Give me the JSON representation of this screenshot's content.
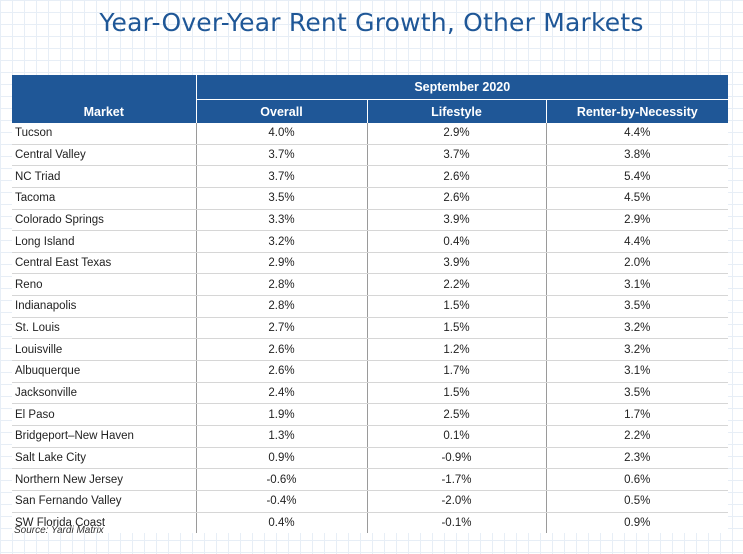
{
  "title": "Year-Over-Year Rent Growth, Other Markets",
  "source": "Source: Yardi Matrix",
  "colors": {
    "header_bg": "#1f5797",
    "title": "#1f5797",
    "grid": "#e7eef6"
  },
  "chart_data": {
    "type": "table",
    "title": "Year-Over-Year Rent Growth, Other Markets",
    "group_header": "September 2020",
    "columns": [
      "Market",
      "Overall",
      "Lifestyle",
      "Renter-by-Necessity"
    ],
    "rows": [
      [
        "Tucson",
        "4.0%",
        "2.9%",
        "4.4%"
      ],
      [
        "Central Valley",
        "3.7%",
        "3.7%",
        "3.8%"
      ],
      [
        "NC Triad",
        "3.7%",
        "2.6%",
        "5.4%"
      ],
      [
        "Tacoma",
        "3.5%",
        "2.6%",
        "4.5%"
      ],
      [
        "Colorado Springs",
        "3.3%",
        "3.9%",
        "2.9%"
      ],
      [
        "Long Island",
        "3.2%",
        "0.4%",
        "4.4%"
      ],
      [
        "Central East Texas",
        "2.9%",
        "3.9%",
        "2.0%"
      ],
      [
        "Reno",
        "2.8%",
        "2.2%",
        "3.1%"
      ],
      [
        "Indianapolis",
        "2.8%",
        "1.5%",
        "3.5%"
      ],
      [
        "St. Louis",
        "2.7%",
        "1.5%",
        "3.2%"
      ],
      [
        "Louisville",
        "2.6%",
        "1.2%",
        "3.2%"
      ],
      [
        "Albuquerque",
        "2.6%",
        "1.7%",
        "3.1%"
      ],
      [
        "Jacksonville",
        "2.4%",
        "1.5%",
        "3.5%"
      ],
      [
        "El Paso",
        "1.9%",
        "2.5%",
        "1.7%"
      ],
      [
        "Bridgeport–New Haven",
        "1.3%",
        "0.1%",
        "2.2%"
      ],
      [
        "Salt Lake City",
        "0.9%",
        "-0.9%",
        "2.3%"
      ],
      [
        "Northern New Jersey",
        "-0.6%",
        "-1.7%",
        "0.6%"
      ],
      [
        "San Fernando Valley",
        "-0.4%",
        "-2.0%",
        "0.5%"
      ],
      [
        "SW Florida Coast",
        "0.4%",
        "-0.1%",
        "0.9%"
      ]
    ]
  }
}
